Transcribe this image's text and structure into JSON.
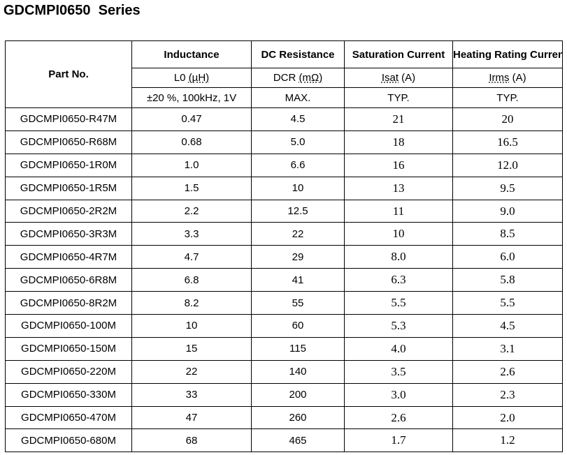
{
  "title": "GDCMPI0650  Series",
  "headers": {
    "part_no": "Part No.",
    "inductance": {
      "name": "Inductance",
      "symbol": "L0",
      "unit": "(µH)",
      "condition": "±20 %, 100kHz, 1V"
    },
    "dc_resistance": {
      "name": "DC Resistance",
      "symbol": "DCR",
      "unit": "(mΩ)",
      "condition": "MAX."
    },
    "saturation_current": {
      "name": "Saturation Current",
      "symbol": "Isat",
      "unit": "(A)",
      "condition": "TYP."
    },
    "heating_rating_current": {
      "name": "Heating Rating Current",
      "symbol": "Irms",
      "unit": "(A)",
      "condition": "TYP."
    }
  },
  "rows": [
    [
      "GDCMPI0650-R47M",
      "0.47",
      "4.5",
      "21",
      "20"
    ],
    [
      "GDCMPI0650-R68M",
      "0.68",
      "5.0",
      "18",
      "16.5"
    ],
    [
      "GDCMPI0650-1R0M",
      "1.0",
      "6.6",
      "16",
      "12.0"
    ],
    [
      "GDCMPI0650-1R5M",
      "1.5",
      "10",
      "13",
      "9.5"
    ],
    [
      "GDCMPI0650-2R2M",
      "2.2",
      "12.5",
      "11",
      "9.0"
    ],
    [
      "GDCMPI0650-3R3M",
      "3.3",
      "22",
      "10",
      "8.5"
    ],
    [
      "GDCMPI0650-4R7M",
      "4.7",
      "29",
      "8.0",
      "6.0"
    ],
    [
      "GDCMPI0650-6R8M",
      "6.8",
      "41",
      "6.3",
      "5.8"
    ],
    [
      "GDCMPI0650-8R2M",
      "8.2",
      "55",
      "5.5",
      "5.5"
    ],
    [
      "GDCMPI0650-100M",
      "10",
      "60",
      "5.3",
      "4.5"
    ],
    [
      "GDCMPI0650-150M",
      "15",
      "115",
      "4.0",
      "3.1"
    ],
    [
      "GDCMPI0650-220M",
      "22",
      "140",
      "3.5",
      "2.6"
    ],
    [
      "GDCMPI0650-330M",
      "33",
      "200",
      "3.0",
      "2.3"
    ],
    [
      "GDCMPI0650-470M",
      "47",
      "260",
      "2.6",
      "2.0"
    ],
    [
      "GDCMPI0650-680M",
      "68",
      "465",
      "1.7",
      "1.2"
    ]
  ]
}
